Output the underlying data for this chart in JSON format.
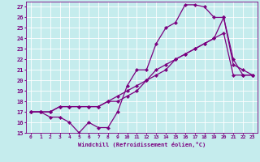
{
  "xlabel": "Windchill (Refroidissement éolien,°C)",
  "xlim": [
    -0.5,
    23.5
  ],
  "ylim": [
    15,
    27.5
  ],
  "yticks": [
    15,
    16,
    17,
    18,
    19,
    20,
    21,
    22,
    23,
    24,
    25,
    26,
    27
  ],
  "xticks": [
    0,
    1,
    2,
    3,
    4,
    5,
    6,
    7,
    8,
    9,
    10,
    11,
    12,
    13,
    14,
    15,
    16,
    17,
    18,
    19,
    20,
    21,
    22,
    23
  ],
  "bg_color": "#c5eced",
  "line_color": "#7b0080",
  "grid_color": "#ffffff",
  "line1_x": [
    0,
    1,
    2,
    3,
    4,
    5,
    6,
    7,
    8,
    9,
    10,
    11,
    12,
    13,
    14,
    15,
    16,
    17,
    18,
    19,
    20,
    21,
    22,
    23
  ],
  "line1_y": [
    17,
    17,
    16.5,
    16.5,
    16,
    15,
    16,
    15.5,
    15.5,
    17,
    19.5,
    21,
    21,
    23.5,
    25,
    25.5,
    27.2,
    27.2,
    27,
    26,
    26,
    22,
    20.5,
    20.5
  ],
  "line2_x": [
    0,
    1,
    2,
    3,
    4,
    5,
    6,
    7,
    8,
    9,
    10,
    11,
    12,
    13,
    14,
    15,
    16,
    17,
    18,
    19,
    20,
    21,
    22,
    23
  ],
  "line2_y": [
    17,
    17,
    17,
    17.5,
    17.5,
    17.5,
    17.5,
    17.5,
    18,
    18.5,
    19,
    19.5,
    20,
    21,
    21.5,
    22,
    22.5,
    23,
    23.5,
    24,
    24.5,
    20.5,
    20.5,
    20.5
  ],
  "line3_x": [
    0,
    1,
    2,
    3,
    4,
    5,
    6,
    7,
    8,
    9,
    10,
    11,
    12,
    13,
    14,
    15,
    16,
    17,
    18,
    19,
    20,
    21,
    22,
    23
  ],
  "line3_y": [
    17,
    17,
    17,
    17.5,
    17.5,
    17.5,
    17.5,
    17.5,
    18,
    18,
    18.5,
    19,
    20,
    20.5,
    21,
    22,
    22.5,
    23,
    23.5,
    24,
    26,
    21.5,
    21,
    20.5
  ],
  "marker": "D",
  "markersize": 2.2,
  "linewidth": 0.9
}
